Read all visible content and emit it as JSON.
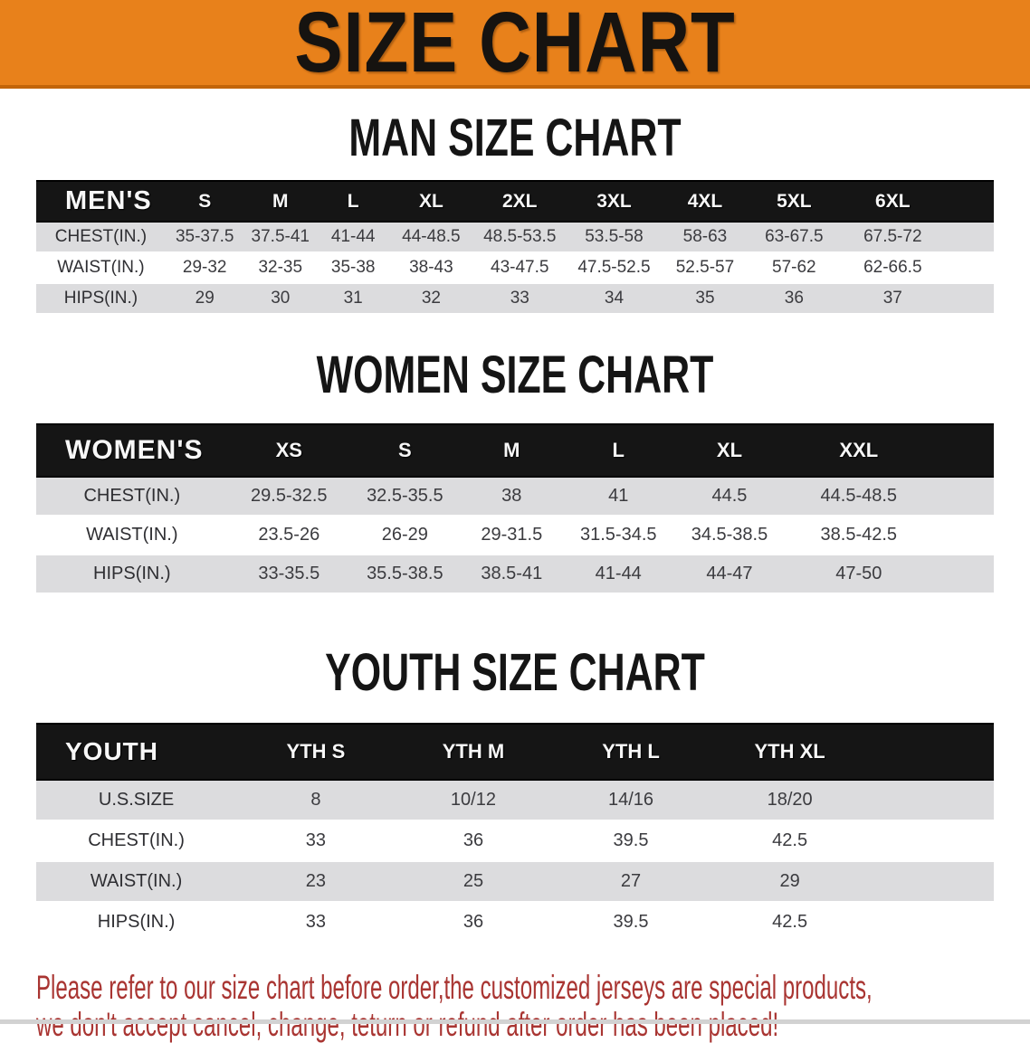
{
  "banner": {
    "title": "SIZE CHART"
  },
  "colors": {
    "banner_orange": "#E8811B",
    "banner_border_dark": "#C26509",
    "table_header_black": "#151515",
    "row_stripe_gray": "#DCDCDE",
    "note_red": "#A93532"
  },
  "sections": [
    {
      "heading": "MAN SIZE CHART",
      "group_label": "MEN'S",
      "columns": [
        "S",
        "M",
        "L",
        "XL",
        "2XL",
        "3XL",
        "4XL",
        "5XL",
        "6XL"
      ],
      "rows": [
        {
          "label": "CHEST(IN.)",
          "values": [
            "35-37.5",
            "37.5-41",
            "41-44",
            "44-48.5",
            "48.5-53.5",
            "53.5-58",
            "58-63",
            "63-67.5",
            "67.5-72"
          ]
        },
        {
          "label": "WAIST(IN.)",
          "values": [
            "29-32",
            "32-35",
            "35-38",
            "38-43",
            "43-47.5",
            "47.5-52.5",
            "52.5-57",
            "57-62",
            "62-66.5"
          ]
        },
        {
          "label": "HIPS(IN.)",
          "values": [
            "29",
            "30",
            "31",
            "32",
            "33",
            "34",
            "35",
            "36",
            "37"
          ]
        }
      ]
    },
    {
      "heading": "WOMEN SIZE CHART",
      "group_label": "WOMEN'S",
      "columns": [
        "XS",
        "S",
        "M",
        "L",
        "XL",
        "XXL"
      ],
      "rows": [
        {
          "label": "CHEST(IN.)",
          "values": [
            "29.5-32.5",
            "32.5-35.5",
            "38",
            "41",
            "44.5",
            "44.5-48.5"
          ]
        },
        {
          "label": "WAIST(IN.)",
          "values": [
            "23.5-26",
            "26-29",
            "29-31.5",
            "31.5-34.5",
            "34.5-38.5",
            "38.5-42.5"
          ]
        },
        {
          "label": "HIPS(IN.)",
          "values": [
            "33-35.5",
            "35.5-38.5",
            "38.5-41",
            "41-44",
            "44-47",
            "47-50"
          ]
        }
      ]
    },
    {
      "heading": "YOUTH SIZE CHART",
      "group_label": "YOUTH",
      "columns": [
        "YTH S",
        "YTH M",
        "YTH L",
        "YTH XL"
      ],
      "rows": [
        {
          "label": "U.S.SIZE",
          "values": [
            "8",
            "10/12",
            "14/16",
            "18/20"
          ]
        },
        {
          "label": "CHEST(IN.)",
          "values": [
            "33",
            "36",
            "39.5",
            "42.5"
          ]
        },
        {
          "label": "WAIST(IN.)",
          "values": [
            "23",
            "25",
            "27",
            "29"
          ]
        },
        {
          "label": "HIPS(IN.)",
          "values": [
            "33",
            "36",
            "39.5",
            "42.5"
          ]
        }
      ]
    }
  ],
  "note": {
    "line1": "Please refer to our size chart before order,the customized jerseys are special products,",
    "line2": "we don't accept cancel, change, teturn or refund after order has been placed!"
  }
}
